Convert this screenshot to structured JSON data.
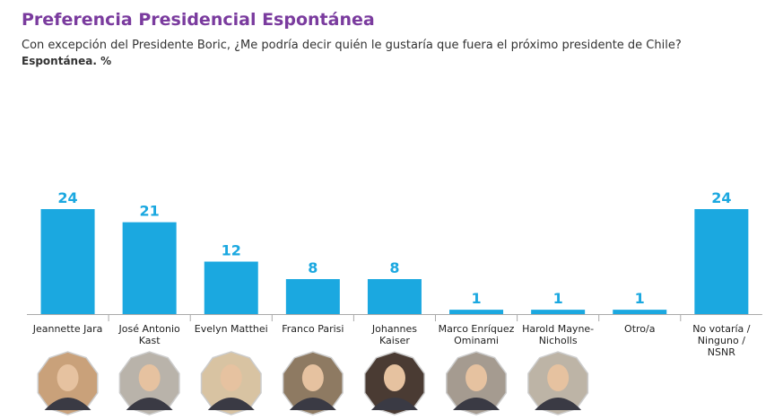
{
  "header": {
    "title": "Preferencia Presidencial Espontánea",
    "subtitle": "Con excepción del Presidente Boric, ¿Me podría decir quién le gustaría que fuera el próximo presidente de Chile?",
    "unit_note": "Espontánea. %"
  },
  "chart_data": {
    "type": "bar",
    "categories": [
      [
        "Jeannette Jara"
      ],
      [
        "José Antonio",
        "Kast"
      ],
      [
        "Evelyn Matthei"
      ],
      [
        "Franco Parisi"
      ],
      [
        "Johannes",
        "Kaiser"
      ],
      [
        "Marco Enríquez",
        "Ominami"
      ],
      [
        "Harold Mayne-",
        "Nicholls"
      ],
      [
        "Otro/a"
      ],
      [
        "No votaría /",
        "Ninguno /",
        "NSNR"
      ]
    ],
    "values": [
      24,
      21,
      12,
      8,
      8,
      1,
      1,
      1,
      24
    ],
    "portraits": [
      true,
      true,
      true,
      true,
      true,
      true,
      true,
      false,
      false
    ],
    "ylim": [
      0,
      24
    ],
    "grid": false,
    "legend": "none",
    "colors": {
      "bar": "#1ba8e0",
      "value_label": "#1ba8e0",
      "axis": "#aaaaaa",
      "category_label": "#222222",
      "portrait_border": "#cccccc",
      "portrait_bg": [
        "#c9a17a",
        "#b9b3aa",
        "#d8c3a2",
        "#8e7a62",
        "#4a3b33",
        "#a59b90",
        "#bdb4a6"
      ]
    }
  }
}
